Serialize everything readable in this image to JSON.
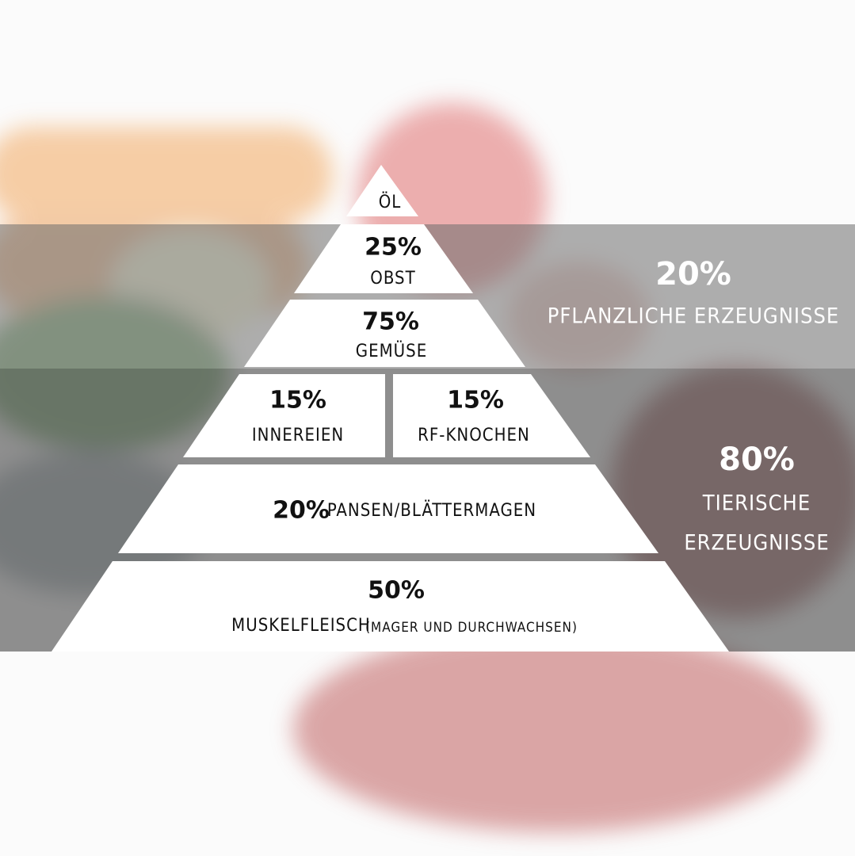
{
  "pyramid": {
    "top": {
      "label": "ÖL"
    },
    "levels": [
      {
        "percent": "25%",
        "label": "OBST"
      },
      {
        "percent": "75%",
        "label": "GEMÜSE"
      },
      {
        "cells": [
          {
            "percent": "15%",
            "label": "INNEREIEN"
          },
          {
            "percent": "15%",
            "label": "RF-KNOCHEN"
          }
        ]
      },
      {
        "percent": "20%",
        "label": "PANSEN/BLÄTTERMAGEN"
      },
      {
        "percent": "50%",
        "label": "MUSKELFLEISCH",
        "note": "(MAGER UND DURCHWACHSEN)"
      }
    ]
  },
  "groups": [
    {
      "percent": "20%",
      "label": "PFLANZLICHE ERZEUGNISSE"
    },
    {
      "percent": "80%",
      "label_lines": [
        "TIERISCHE",
        "ERZEUGNISSE"
      ]
    }
  ]
}
